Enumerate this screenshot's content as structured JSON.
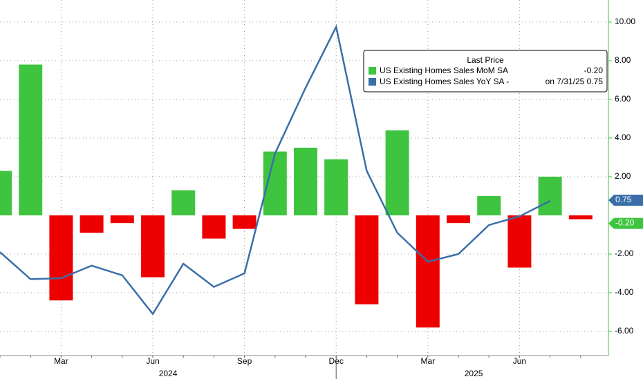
{
  "chart_data": {
    "type": "bar_line",
    "categories": [
      null,
      null,
      "Mar",
      null,
      null,
      "Jun",
      null,
      null,
      "Sep",
      null,
      null,
      "Dec",
      null,
      null,
      "Mar",
      null,
      null,
      "Jun",
      null,
      null
    ],
    "years": [
      "2024",
      "2025"
    ],
    "series": [
      {
        "name": "US Existing Homes Sales MoM SA",
        "type": "bar",
        "color": "#3ec43e",
        "negative_color": "#ee0000",
        "values": [
          2.3,
          7.8,
          -4.4,
          -0.9,
          -0.4,
          -3.2,
          1.3,
          -1.2,
          -0.7,
          3.3,
          3.5,
          2.9,
          -4.6,
          4.4,
          -5.8,
          -0.4,
          1.0,
          -2.7,
          2.0,
          -0.2
        ],
        "legend_value": "-0.20",
        "last_value": -0.2,
        "last_label": "-0.20"
      },
      {
        "name": "US Existing Homes Sales YoY SA -",
        "type": "line",
        "color": "#3a6ea8",
        "values": [
          -1.9,
          -3.3,
          -3.25,
          -2.6,
          -3.1,
          -5.1,
          -2.5,
          -3.7,
          -3.0,
          3.2,
          6.6,
          9.75,
          2.3,
          -0.9,
          -2.4,
          -2.0,
          -0.5,
          -0.05,
          0.75,
          null
        ],
        "legend_value": "on 7/31/25 0.75",
        "last_value": 0.75,
        "last_label": "0.75"
      }
    ],
    "legend_title": "Last Price",
    "ylim": [
      -7.25,
      11.14
    ],
    "yticks": [
      {
        "value": -6,
        "label": "-6.00"
      },
      {
        "value": -4,
        "label": "-4.00"
      },
      {
        "value": -2,
        "label": "-2.00"
      },
      {
        "value": 2,
        "label": "2.00"
      },
      {
        "value": 4,
        "label": "4.00"
      },
      {
        "value": 6,
        "label": "6.00"
      },
      {
        "value": 8,
        "label": "8.00"
      },
      {
        "value": 10,
        "label": "10.00"
      }
    ],
    "grid": true
  }
}
